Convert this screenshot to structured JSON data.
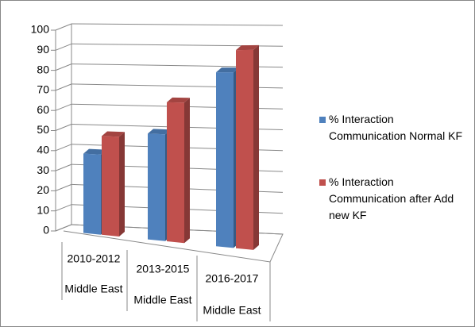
{
  "chart_data": {
    "type": "bar3d",
    "categories": [
      "2010-2012",
      "2013-2015",
      "2016-2017"
    ],
    "category_groups": [
      "Middle East",
      "Middle East",
      "Middle East"
    ],
    "series": [
      {
        "name": "% Interaction Communication Normal KF",
        "color": "#4f81bd",
        "values": [
          39,
          50,
          79
        ]
      },
      {
        "name": "% Interaction Communication after Add new KF",
        "color": "#c0504d",
        "values": [
          48,
          65,
          89
        ]
      }
    ],
    "ylim": [
      0,
      100
    ],
    "yticks": [
      0,
      10,
      20,
      30,
      40,
      50,
      60,
      70,
      80,
      90,
      100
    ],
    "grid": true,
    "legend": "right"
  }
}
